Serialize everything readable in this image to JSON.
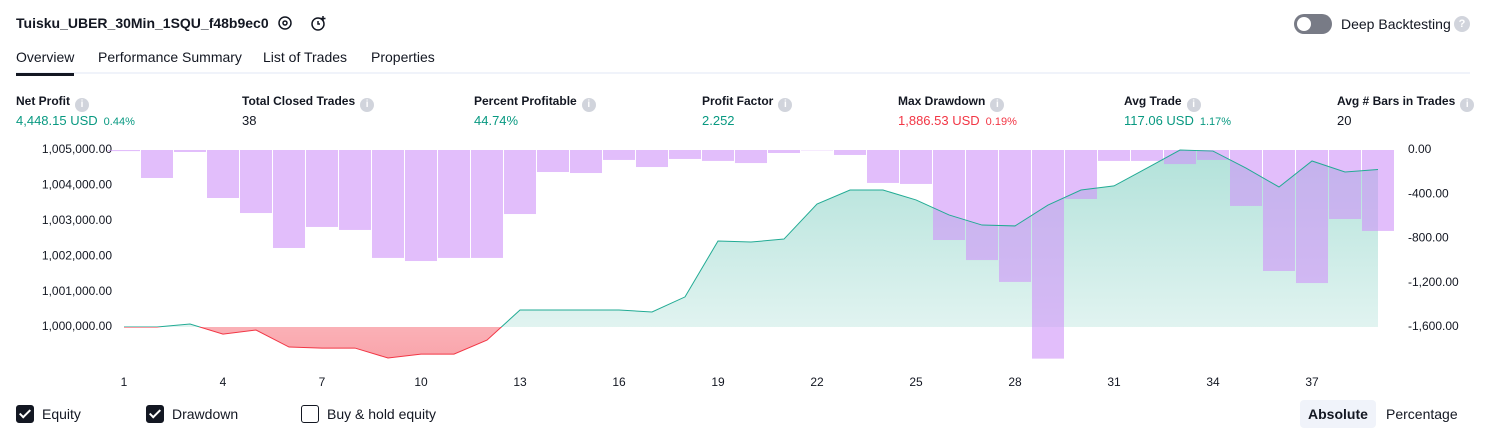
{
  "header": {
    "title": "Tuisku_UBER_30Min_1SQU_f48b9ec0",
    "toggle_label": "Deep Backtesting"
  },
  "tabs": [
    "Overview",
    "Performance Summary",
    "List of Trades",
    "Properties"
  ],
  "active_tab": 0,
  "metrics": [
    {
      "label": "Net Profit",
      "value": "4,448.15 USD",
      "percent": "0.44%",
      "tone": "positive"
    },
    {
      "label": "Total Closed Trades",
      "value": "38",
      "tone": "neutral"
    },
    {
      "label": "Percent Profitable",
      "value": "44.74%",
      "tone": "positive"
    },
    {
      "label": "Profit Factor",
      "value": "2.252",
      "tone": "positive"
    },
    {
      "label": "Max Drawdown",
      "value": "1,886.53 USD",
      "percent": "0.19%",
      "tone": "negative"
    },
    {
      "label": "Avg Trade",
      "value": "117.06 USD",
      "percent": "1.17%",
      "tone": "positive"
    },
    {
      "label": "Avg # Bars in Trades",
      "value": "20",
      "tone": "neutral"
    }
  ],
  "chart_data": {
    "type": "equity-drawdown",
    "x": [
      1,
      2,
      3,
      4,
      5,
      6,
      7,
      8,
      9,
      10,
      11,
      12,
      13,
      14,
      15,
      16,
      17,
      18,
      19,
      20,
      21,
      22,
      23,
      24,
      25,
      26,
      27,
      28,
      29,
      30,
      31,
      32,
      33,
      34,
      35,
      36,
      37,
      38,
      39
    ],
    "xlim": [
      0.5,
      39.5
    ],
    "xticks": [
      1,
      4,
      7,
      10,
      13,
      16,
      19,
      22,
      25,
      28,
      31,
      34,
      37
    ],
    "ylim": [
      999068,
      1005000
    ],
    "yticks": [
      {
        "value": 1000000,
        "label": "1,000,000.00"
      },
      {
        "value": 1001000,
        "label": "1,001,000.00"
      },
      {
        "value": 1002000,
        "label": "1,002,000.00"
      },
      {
        "value": 1003000,
        "label": "1,003,000.00"
      },
      {
        "value": 1004000,
        "label": "1,004,000.00"
      },
      {
        "value": 1005000,
        "label": "1,005,000.00"
      }
    ],
    "y2lim": [
      -1899,
      0
    ],
    "y2ticks": [
      {
        "value": 0,
        "label": "0.00"
      },
      {
        "value": -400,
        "label": "-400.00"
      },
      {
        "value": -800,
        "label": "-800.00"
      },
      {
        "value": -1200,
        "label": "-1,200.00"
      },
      {
        "value": -1600,
        "label": "-1,600.00"
      }
    ],
    "series": [
      {
        "name": "Equity",
        "color": "#22ab94",
        "negative_color": "#f23645",
        "checked": true,
        "values": [
          1000000,
          1000000,
          1000085,
          999800,
          999915,
          999435,
          999405,
          999405,
          999125,
          999235,
          999235,
          999630,
          1000480,
          1000480,
          1000480,
          1000480,
          1000425,
          1000850,
          1002430,
          1002400,
          1002485,
          1003475,
          1003870,
          1003870,
          1003590,
          1003165,
          1002880,
          1002855,
          1003445,
          1003870,
          1003985,
          1004490,
          1005000,
          1004970,
          1004490,
          1003955,
          1004690,
          1004380,
          1004448.15
        ]
      },
      {
        "name": "Drawdown",
        "color": "#ce93f8",
        "axis": "y2",
        "checked": true,
        "values": [
          -10,
          -253,
          -18,
          -434,
          -570,
          -886,
          -696,
          -723,
          -976,
          -1004,
          -976,
          -976,
          -579,
          -199,
          -208,
          -90,
          -154,
          -81,
          -99,
          -118,
          -27,
          -3,
          -45,
          -298,
          -307,
          -814,
          -995,
          -1193,
          -1886.53,
          -443,
          -99,
          -99,
          -127,
          -90,
          -506,
          -1094,
          -1203,
          -624,
          -732
        ]
      }
    ],
    "buy_hold": {
      "name": "Buy & hold equity",
      "checked": false
    },
    "scale_modes": [
      "Absolute",
      "Percentage"
    ],
    "active_mode": 0
  }
}
